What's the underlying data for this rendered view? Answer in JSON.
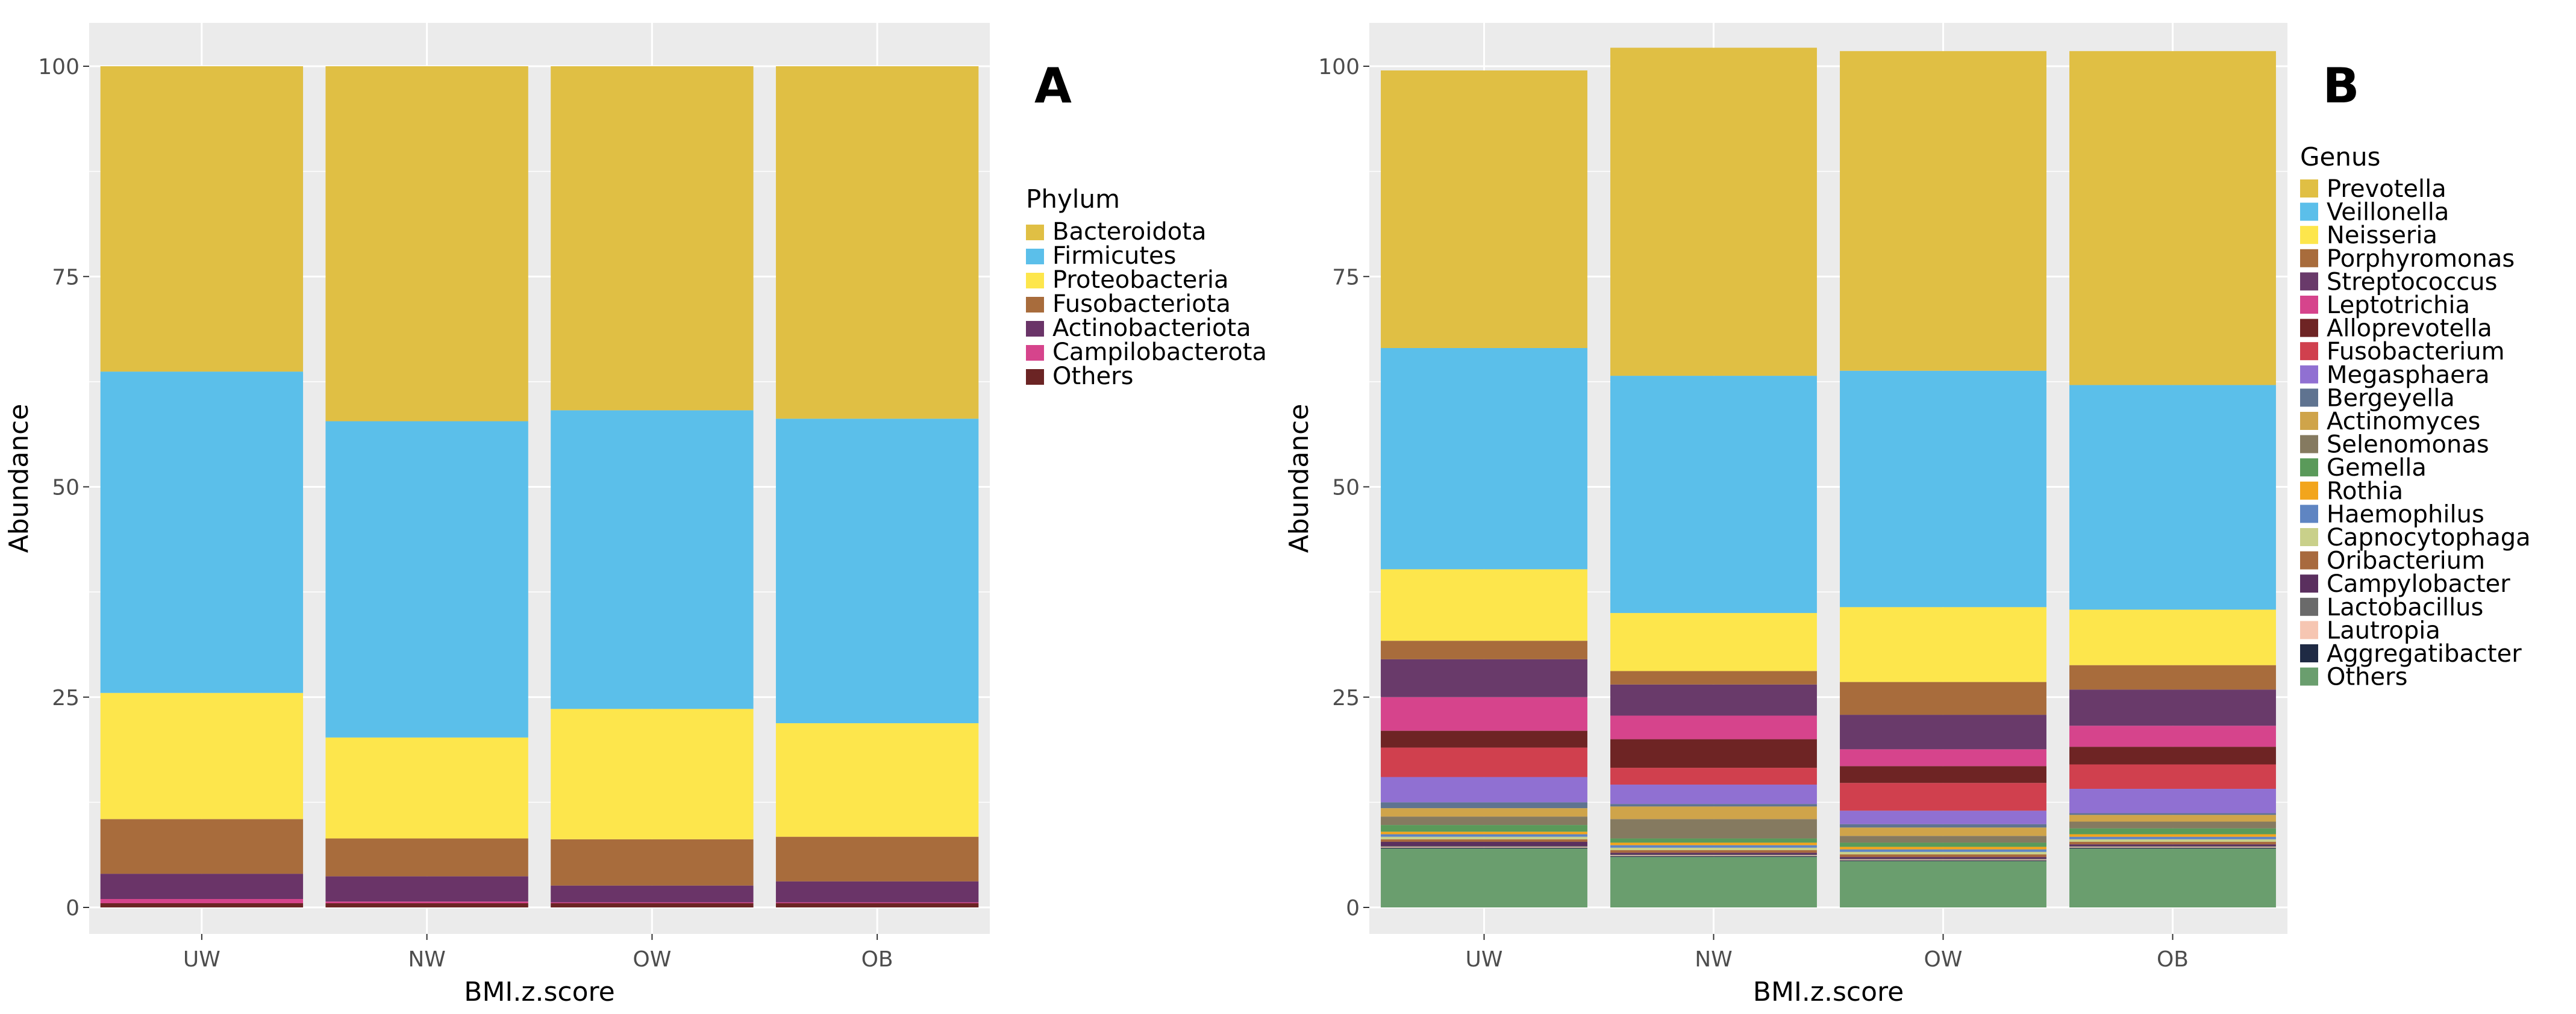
{
  "figure": {
    "x_axis_title": "BMI.z.score",
    "y_axis_title": "Abundance"
  },
  "chart_data": [
    {
      "type": "bar",
      "stacked": true,
      "panel_label": "A",
      "xlabel": "BMI.z.score",
      "ylabel": "Abundance",
      "ylim": [
        0,
        100
      ],
      "yticks": [
        0,
        25,
        50,
        75,
        100
      ],
      "categories": [
        "UW",
        "NW",
        "OW",
        "OB"
      ],
      "legend_title": "Phylum",
      "legend_position": "right",
      "series": [
        {
          "name": "Others",
          "color": "#6b2424",
          "values": [
            0.5,
            0.5,
            0.5,
            0.5
          ]
        },
        {
          "name": "Campilobacterota",
          "color": "#d6448c",
          "values": [
            0.5,
            0.2,
            0.1,
            0.1
          ]
        },
        {
          "name": "Actinobacteriota",
          "color": "#6a3468",
          "values": [
            3.0,
            3.0,
            2.0,
            2.5
          ]
        },
        {
          "name": "Fusobacteriota",
          "color": "#a86c3c",
          "values": [
            6.5,
            4.5,
            5.5,
            5.3
          ]
        },
        {
          "name": "Proteobacteria",
          "color": "#fde64c",
          "values": [
            15.0,
            12.0,
            15.5,
            13.5
          ]
        },
        {
          "name": "Firmicutes",
          "color": "#5bbfea",
          "values": [
            38.2,
            37.6,
            35.5,
            36.2
          ]
        },
        {
          "name": "Bacteroidota",
          "color": "#e0bf44",
          "values": [
            36.3,
            42.2,
            40.9,
            41.9
          ]
        }
      ],
      "legend_order": [
        "Bacteroidota",
        "Firmicutes",
        "Proteobacteria",
        "Fusobacteriota",
        "Actinobacteriota",
        "Campilobacterota",
        "Others"
      ]
    },
    {
      "type": "bar",
      "stacked": true,
      "panel_label": "B",
      "xlabel": "BMI.z.score",
      "ylabel": "Abundance",
      "ylim": [
        0,
        100
      ],
      "yticks": [
        0,
        25,
        50,
        75,
        100
      ],
      "categories": [
        "UW",
        "NW",
        "OW",
        "OB"
      ],
      "legend_title": "Genus",
      "legend_position": "right",
      "series": [
        {
          "name": "Others",
          "color": "#6a9e6e",
          "values": [
            7.0,
            6.0,
            5.5,
            7.0
          ]
        },
        {
          "name": "Aggregatibacter",
          "color": "#1f2a44",
          "values": [
            0.1,
            0.1,
            0.1,
            0.1
          ]
        },
        {
          "name": "Lautropia",
          "color": "#f6c6b2",
          "values": [
            0.1,
            0.1,
            0.1,
            0.1
          ]
        },
        {
          "name": "Lactobacillus",
          "color": "#6a6a6a",
          "values": [
            0.1,
            0.1,
            0.1,
            0.1
          ]
        },
        {
          "name": "Campylobacter",
          "color": "#5a2f5e",
          "values": [
            0.5,
            0.2,
            0.2,
            0.2
          ]
        },
        {
          "name": "Oribacterium",
          "color": "#a86a3e",
          "values": [
            0.3,
            0.3,
            0.3,
            0.3
          ]
        },
        {
          "name": "Capnocytophaga",
          "color": "#c9d08a",
          "values": [
            0.3,
            0.3,
            0.3,
            0.3
          ]
        },
        {
          "name": "Haemophilus",
          "color": "#5f85c2",
          "values": [
            0.3,
            0.3,
            0.3,
            0.3
          ]
        },
        {
          "name": "Rothia",
          "color": "#f2a51c",
          "values": [
            0.3,
            0.3,
            0.3,
            0.3
          ]
        },
        {
          "name": "Gemella",
          "color": "#5a9a5a",
          "values": [
            0.8,
            0.5,
            0.5,
            0.7
          ]
        },
        {
          "name": "Selenomonas",
          "color": "#857a60",
          "values": [
            1.0,
            2.3,
            0.8,
            0.8
          ]
        },
        {
          "name": "Actinomyces",
          "color": "#cfa44a",
          "values": [
            1.0,
            1.5,
            1.0,
            0.8
          ]
        },
        {
          "name": "Bergeyella",
          "color": "#5f7390",
          "values": [
            0.7,
            0.3,
            0.4,
            0.2
          ]
        },
        {
          "name": "Megasphaera",
          "color": "#9070d2",
          "values": [
            3.0,
            2.3,
            1.6,
            2.9
          ]
        },
        {
          "name": "Fusobacterium",
          "color": "#d0404e",
          "values": [
            3.5,
            2.0,
            3.3,
            2.9
          ]
        },
        {
          "name": "Alloprevotella",
          "color": "#6e2424",
          "values": [
            2.0,
            3.4,
            2.0,
            2.1
          ]
        },
        {
          "name": "Leptotrichia",
          "color": "#d6448c",
          "values": [
            4.0,
            2.8,
            2.0,
            2.5
          ]
        },
        {
          "name": "Streptococcus",
          "color": "#693a6a",
          "values": [
            4.5,
            3.7,
            4.1,
            4.3
          ]
        },
        {
          "name": "Porphyromonas",
          "color": "#a86c3c",
          "values": [
            2.2,
            1.6,
            3.9,
            2.9
          ]
        },
        {
          "name": "Neisseria",
          "color": "#fde64c",
          "values": [
            8.5,
            6.9,
            8.9,
            6.6
          ]
        },
        {
          "name": "Veillonella",
          "color": "#5bbfea",
          "values": [
            26.3,
            28.2,
            28.1,
            26.7
          ]
        },
        {
          "name": "Prevotella",
          "color": "#e0bf44",
          "values": [
            33.0,
            39.0,
            38.0,
            39.7
          ]
        }
      ],
      "legend_order": [
        "Prevotella",
        "Veillonella",
        "Neisseria",
        "Porphyromonas",
        "Streptococcus",
        "Leptotrichia",
        "Alloprevotella",
        "Fusobacterium",
        "Megasphaera",
        "Bergeyella",
        "Actinomyces",
        "Selenomonas",
        "Gemella",
        "Rothia",
        "Haemophilus",
        "Capnocytophaga",
        "Oribacterium",
        "Campylobacter",
        "Lactobacillus",
        "Lautropia",
        "Aggregatibacter",
        "Others"
      ]
    }
  ]
}
